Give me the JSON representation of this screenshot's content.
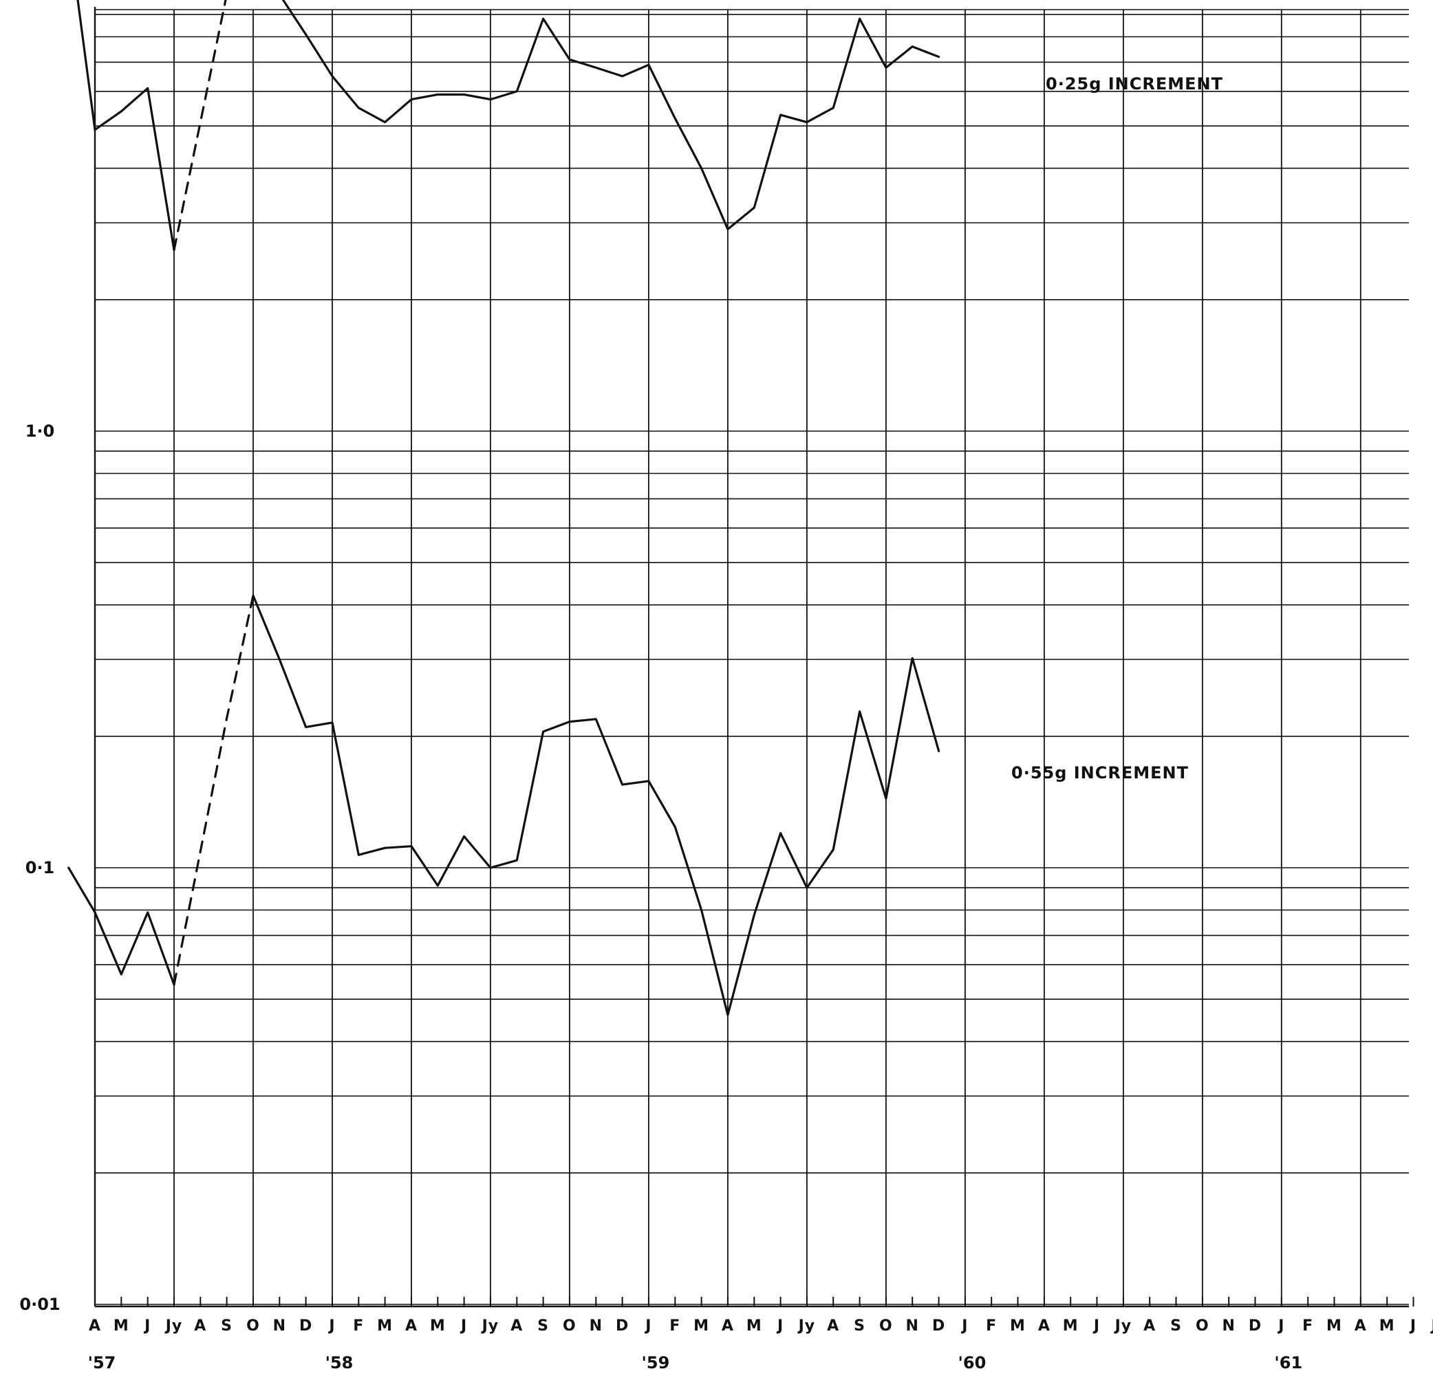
{
  "chart_data": {
    "type": "line",
    "y_scale": "log",
    "ylim": [
      0.01,
      10
    ],
    "grid": true,
    "y_tick_labels": [
      "1·0",
      "0·1",
      "0·01"
    ],
    "x_month_labels": [
      "A",
      "M",
      "J",
      "Jy",
      "A",
      "S",
      "O",
      "N",
      "D",
      "J",
      "F",
      "M",
      "A",
      "M",
      "J",
      "Jy",
      "A",
      "S",
      "O",
      "N",
      "D",
      "J",
      "F",
      "M",
      "A",
      "M",
      "J",
      "Jy",
      "A",
      "S",
      "O",
      "N",
      "D",
      "J",
      "F",
      "M",
      "A",
      "M",
      "J",
      "Jy",
      "A",
      "S",
      "O",
      "N",
      "D",
      "J",
      "F",
      "M",
      "A",
      "M",
      "J",
      "Jy"
    ],
    "x_year_labels": [
      {
        "label": "'57",
        "month_index": 0
      },
      {
        "label": "'58",
        "month_index": 9
      },
      {
        "label": "'59",
        "month_index": 21
      },
      {
        "label": "'60",
        "month_index": 33
      },
      {
        "label": "'61",
        "month_index": 45
      }
    ],
    "series": [
      {
        "name": "0·25g INCREMENT",
        "segments": [
          {
            "style": "solid",
            "points": [
              [
                -1.0,
                14.0
              ],
              [
                0.0,
                4.9
              ],
              [
                1.0,
                5.4
              ],
              [
                2.0,
                6.1
              ],
              [
                3.0,
                2.6
              ]
            ]
          },
          {
            "style": "dashed",
            "points": [
              [
                3.0,
                2.6
              ],
              [
                5.0,
                10.0
              ]
            ]
          },
          {
            "style": "solid",
            "points": [
              [
                7.0,
                10.0
              ],
              [
                8.0,
                8.1
              ],
              [
                9.0,
                6.5
              ],
              [
                10.0,
                5.5
              ],
              [
                11.0,
                5.1
              ],
              [
                12.0,
                5.75
              ],
              [
                13.0,
                5.9
              ],
              [
                14.0,
                5.9
              ],
              [
                15.0,
                5.75
              ],
              [
                16.0,
                6.0
              ],
              [
                17.0,
                8.8
              ],
              [
                18.0,
                7.1
              ],
              [
                19.0,
                6.8
              ],
              [
                20.0,
                6.5
              ],
              [
                21.0,
                6.9
              ],
              [
                22.0,
                5.2
              ],
              [
                23.0,
                4.0
              ],
              [
                24.0,
                2.9
              ],
              [
                25.0,
                3.25
              ],
              [
                26.0,
                5.3
              ],
              [
                27.0,
                5.1
              ],
              [
                28.0,
                5.5
              ],
              [
                29.0,
                8.8
              ],
              [
                30.0,
                6.8
              ],
              [
                31.0,
                7.6
              ],
              [
                32.0,
                7.2
              ]
            ]
          }
        ]
      },
      {
        "name": "0·55g INCREMENT",
        "segments": [
          {
            "style": "solid",
            "points": [
              [
                -1.0,
                0.1
              ],
              [
                0.0,
                0.079
              ],
              [
                1.0,
                0.057
              ],
              [
                2.0,
                0.079
              ],
              [
                3.0,
                0.054
              ]
            ]
          },
          {
            "style": "dashed",
            "points": [
              [
                3.0,
                0.054
              ],
              [
                5.0,
                0.22
              ],
              [
                6.0,
                0.42
              ]
            ]
          },
          {
            "style": "solid",
            "points": [
              [
                6.0,
                0.42
              ],
              [
                7.0,
                0.3
              ],
              [
                8.0,
                0.21
              ],
              [
                9.0,
                0.215
              ],
              [
                10.0,
                0.107
              ],
              [
                11.0,
                0.111
              ],
              [
                12.0,
                0.112
              ],
              [
                13.0,
                0.091
              ],
              [
                14.0,
                0.118
              ],
              [
                15.0,
                0.1
              ],
              [
                16.0,
                0.104
              ],
              [
                17.0,
                0.205
              ],
              [
                18.0,
                0.216
              ],
              [
                19.0,
                0.219
              ],
              [
                20.0,
                0.155
              ],
              [
                21.0,
                0.158
              ],
              [
                22.0,
                0.124
              ],
              [
                23.0,
                0.08
              ],
              [
                24.0,
                0.046
              ],
              [
                25.0,
                0.078
              ],
              [
                26.0,
                0.12
              ],
              [
                27.0,
                0.09
              ],
              [
                28.0,
                0.11
              ],
              [
                29.0,
                0.228
              ],
              [
                30.0,
                0.144
              ],
              [
                31.0,
                0.302
              ],
              [
                32.0,
                0.185
              ]
            ]
          }
        ]
      }
    ]
  }
}
